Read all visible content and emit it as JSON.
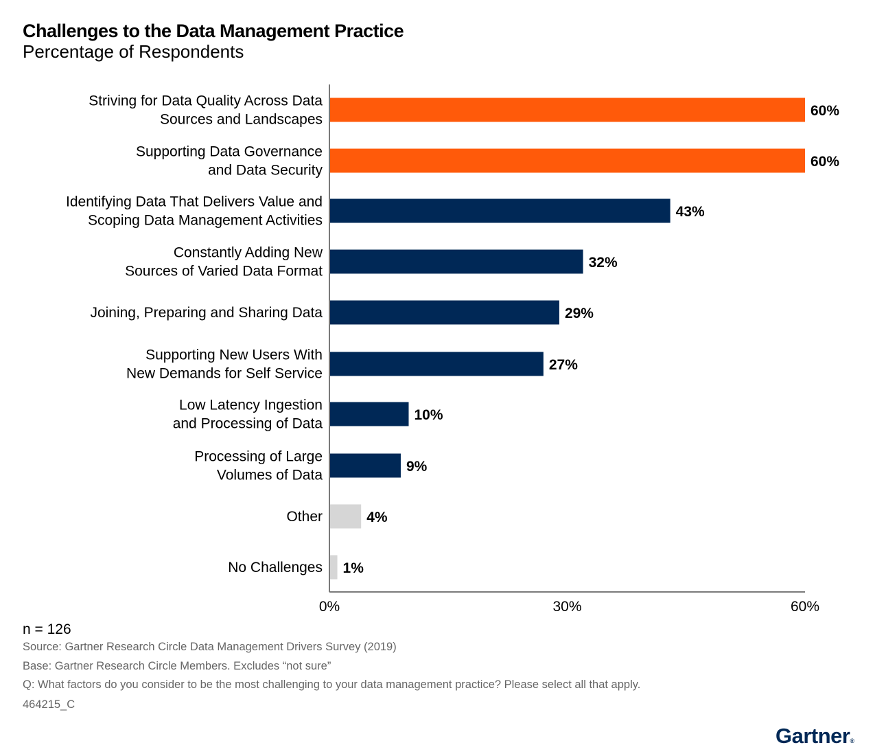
{
  "chart_data": {
    "type": "bar",
    "orientation": "horizontal",
    "title": "Challenges to the Data Management Practice",
    "subtitle": "Percentage of Respondents",
    "categories": [
      [
        "Striving for Data Quality Across Data",
        "Sources and Landscapes"
      ],
      [
        "Supporting Data Governance",
        "and Data Security"
      ],
      [
        "Identifying Data That Delivers Value and",
        "Scoping Data Management Activities"
      ],
      [
        "Constantly Adding New",
        "Sources of Varied Data Format"
      ],
      [
        "Joining, Preparing and Sharing Data"
      ],
      [
        "Supporting New Users With",
        "New Demands for Self Service"
      ],
      [
        "Low Latency Ingestion",
        "and Processing of Data"
      ],
      [
        "Processing of Large",
        "Volumes of Data"
      ],
      [
        "Other"
      ],
      [
        "No Challenges"
      ]
    ],
    "values": [
      60,
      60,
      43,
      32,
      29,
      27,
      10,
      9,
      4,
      1
    ],
    "value_labels": [
      "60%",
      "60%",
      "43%",
      "32%",
      "29%",
      "27%",
      "10%",
      "9%",
      "4%",
      "1%"
    ],
    "bar_colors": [
      "#FF5A0A",
      "#FF5A0A",
      "#002856",
      "#002856",
      "#002856",
      "#002856",
      "#002856",
      "#002856",
      "#D6D6D6",
      "#D6D6D6"
    ],
    "xlim": [
      0,
      60
    ],
    "xticks": [
      0,
      30,
      60
    ],
    "xtick_labels": [
      "0%",
      "30%",
      "60%"
    ],
    "xlabel": "",
    "ylabel": "",
    "grid": false,
    "legend": "none"
  },
  "footer": {
    "n": "n = 126",
    "source": "Source: Gartner Research Circle Data Management Drivers Survey (2019)",
    "base": "Base: Gartner Research Circle Members. Excludes “not sure”",
    "question": "Q: What factors do you consider to be the most challenging to your data management practice? Please select all that apply.",
    "id": "464215_C"
  },
  "logo": {
    "text": "Gartner",
    "mark": "®"
  }
}
